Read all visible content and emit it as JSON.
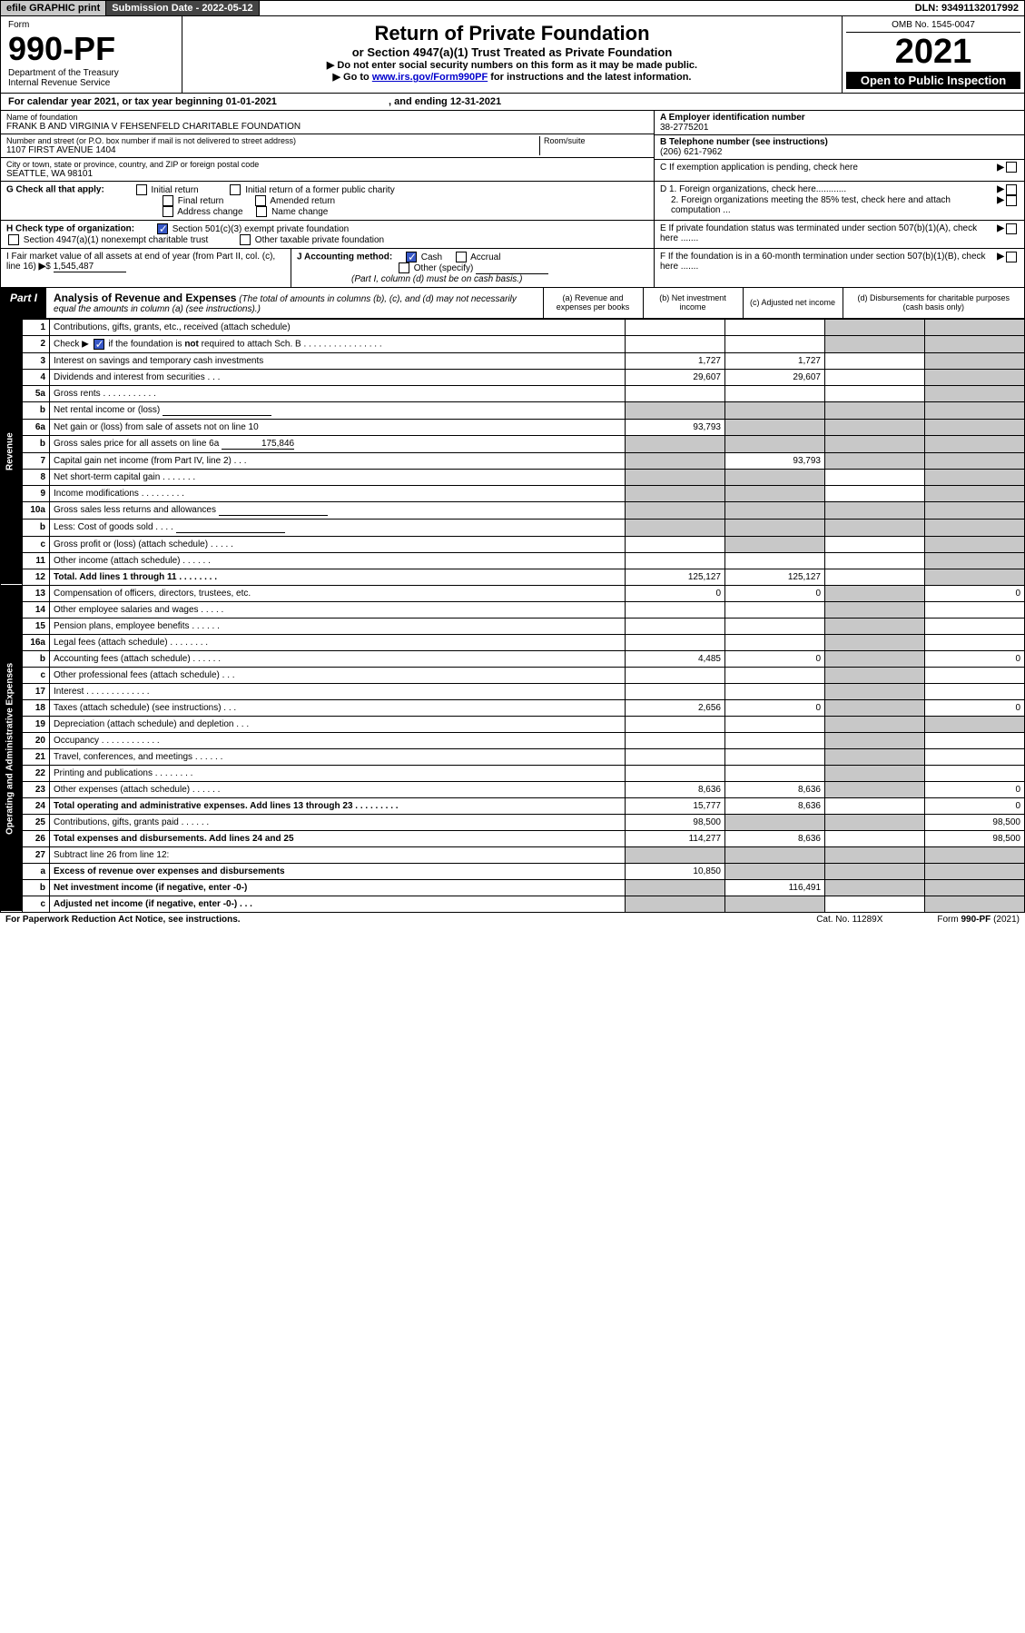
{
  "topbar": {
    "efile": "efile GRAPHIC print",
    "submission_label": "Submission Date - 2022-05-12",
    "dln": "DLN: 93491132017992"
  },
  "header": {
    "form_label": "Form",
    "form_number": "990-PF",
    "dept": "Department of the Treasury",
    "irs": "Internal Revenue Service",
    "title": "Return of Private Foundation",
    "subtitle": "or Section 4947(a)(1) Trust Treated as Private Foundation",
    "instr1": "▶ Do not enter social security numbers on this form as it may be made public.",
    "instr2_pre": "▶ Go to ",
    "instr2_link": "www.irs.gov/Form990PF",
    "instr2_post": " for instructions and the latest information.",
    "omb": "OMB No. 1545-0047",
    "year": "2021",
    "open": "Open to Public Inspection"
  },
  "calendar": {
    "text_pre": "For calendar year 2021, or tax year beginning ",
    "begin": "01-01-2021",
    "mid": " , and ending ",
    "end": "12-31-2021"
  },
  "entity": {
    "name_lbl": "Name of foundation",
    "name": "FRANK B AND VIRGINIA V FEHSENFELD CHARITABLE FOUNDATION",
    "addr_lbl": "Number and street (or P.O. box number if mail is not delivered to street address)",
    "addr": "1107 FIRST AVENUE 1404",
    "room_lbl": "Room/suite",
    "city_lbl": "City or town, state or province, country, and ZIP or foreign postal code",
    "city": "SEATTLE, WA  98101",
    "a_lbl": "A Employer identification number",
    "a_val": "38-2775201",
    "b_lbl": "B Telephone number (see instructions)",
    "b_val": "(206) 621-7962",
    "c_lbl": "C If exemption application is pending, check here"
  },
  "g": {
    "lbl": "G Check all that apply:",
    "opts": [
      "Initial return",
      "Initial return of a former public charity",
      "Final return",
      "Amended return",
      "Address change",
      "Name change"
    ]
  },
  "h": {
    "lbl": "H Check type of organization:",
    "opt1": "Section 501(c)(3) exempt private foundation",
    "opt2": "Section 4947(a)(1) nonexempt charitable trust",
    "opt3": "Other taxable private foundation"
  },
  "i": {
    "lbl": "I Fair market value of all assets at end of year (from Part II, col. (c), line 16)",
    "val": "1,545,487"
  },
  "j": {
    "lbl": "J Accounting method:",
    "cash": "Cash",
    "accrual": "Accrual",
    "other": "Other (specify)",
    "note": "(Part I, column (d) must be on cash basis.)"
  },
  "d": {
    "d1": "D 1. Foreign organizations, check here............",
    "d2": "2. Foreign organizations meeting the 85% test, check here and attach computation ...",
    "e": "E  If private foundation status was terminated under section 507(b)(1)(A), check here .......",
    "f": "F  If the foundation is in a 60-month termination under section 507(b)(1)(B), check here ......."
  },
  "part1": {
    "tag": "Part I",
    "title": "Analysis of Revenue and Expenses",
    "title_note": " (The total of amounts in columns (b), (c), and (d) may not necessarily equal the amounts in column (a) (see instructions).)",
    "cols": {
      "a": "(a)   Revenue and expenses per books",
      "b": "(b)   Net investment income",
      "c": "(c)   Adjusted net income",
      "d": "(d)   Disbursements for charitable purposes (cash basis only)"
    }
  },
  "side_labels": {
    "rev": "Revenue",
    "exp": "Operating and Administrative Expenses"
  },
  "rows": [
    {
      "n": "1",
      "d": "Contributions, gifts, grants, etc., received (attach schedule)",
      "a": "",
      "b": "",
      "c": "s",
      "ds": "s"
    },
    {
      "n": "2",
      "d": "Check ▶ ☑ if the foundation is not required to attach Sch. B   .  .  .  .  .  .  .  .  .  .  .  .  .  .  .  .",
      "a": "",
      "b": "",
      "c": "s",
      "ds": "s",
      "checked": true
    },
    {
      "n": "3",
      "d": "Interest on savings and temporary cash investments",
      "a": "1,727",
      "b": "1,727",
      "c": "",
      "ds": "s"
    },
    {
      "n": "4",
      "d": "Dividends and interest from securities   .   .   .",
      "a": "29,607",
      "b": "29,607",
      "c": "",
      "ds": "s"
    },
    {
      "n": "5a",
      "d": "Gross rents   .   .   .   .   .   .   .   .   .   .   .",
      "a": "",
      "b": "",
      "c": "",
      "ds": "s"
    },
    {
      "n": "b",
      "d": "Net rental income or (loss)  ",
      "a": "s",
      "b": "s",
      "c": "s",
      "ds": "s",
      "inline": true
    },
    {
      "n": "6a",
      "d": "Net gain or (loss) from sale of assets not on line 10",
      "a": "93,793",
      "b": "s",
      "c": "s",
      "ds": "s"
    },
    {
      "n": "b",
      "d": "Gross sales price for all assets on line 6a",
      "a": "s",
      "b": "s",
      "c": "s",
      "ds": "s",
      "inline_val": "175,846"
    },
    {
      "n": "7",
      "d": "Capital gain net income (from Part IV, line 2)   .   .   .",
      "a": "s",
      "b": "93,793",
      "c": "s",
      "ds": "s"
    },
    {
      "n": "8",
      "d": "Net short-term capital gain   .   .   .   .   .   .   .",
      "a": "s",
      "b": "s",
      "c": "",
      "ds": "s"
    },
    {
      "n": "9",
      "d": "Income modifications  .   .   .   .   .   .   .   .   .",
      "a": "s",
      "b": "s",
      "c": "",
      "ds": "s"
    },
    {
      "n": "10a",
      "d": "Gross sales less returns and allowances",
      "a": "s",
      "b": "s",
      "c": "s",
      "ds": "s",
      "inline": true
    },
    {
      "n": "b",
      "d": "Less: Cost of goods sold   .   .   .   .",
      "a": "s",
      "b": "s",
      "c": "s",
      "ds": "s",
      "inline": true
    },
    {
      "n": "c",
      "d": "Gross profit or (loss) (attach schedule)   .   .   .   .   .",
      "a": "",
      "b": "s",
      "c": "",
      "ds": "s"
    },
    {
      "n": "11",
      "d": "Other income (attach schedule)   .   .   .   .   .   .",
      "a": "",
      "b": "",
      "c": "",
      "ds": "s"
    },
    {
      "n": "12",
      "d": "Total. Add lines 1 through 11   .   .   .   .   .   .   .   .",
      "a": "125,127",
      "b": "125,127",
      "c": "",
      "ds": "s",
      "bold": true
    }
  ],
  "exp_rows": [
    {
      "n": "13",
      "d": "Compensation of officers, directors, trustees, etc.",
      "a": "0",
      "b": "0",
      "c": "s",
      "dv": "0"
    },
    {
      "n": "14",
      "d": "Other employee salaries and wages   .   .   .   .   .",
      "a": "",
      "b": "",
      "c": "s",
      "dv": ""
    },
    {
      "n": "15",
      "d": "Pension plans, employee benefits  .   .   .   .   .   .",
      "a": "",
      "b": "",
      "c": "s",
      "dv": ""
    },
    {
      "n": "16a",
      "d": "Legal fees (attach schedule)  .   .   .   .   .   .   .   .",
      "a": "",
      "b": "",
      "c": "s",
      "dv": ""
    },
    {
      "n": "b",
      "d": "Accounting fees (attach schedule)  .   .   .   .   .   .",
      "a": "4,485",
      "b": "0",
      "c": "s",
      "dv": "0"
    },
    {
      "n": "c",
      "d": "Other professional fees (attach schedule)   .   .   .",
      "a": "",
      "b": "",
      "c": "s",
      "dv": ""
    },
    {
      "n": "17",
      "d": "Interest  .   .   .   .   .   .   .   .   .   .   .   .   .",
      "a": "",
      "b": "",
      "c": "s",
      "dv": ""
    },
    {
      "n": "18",
      "d": "Taxes (attach schedule) (see instructions)   .   .   .",
      "a": "2,656",
      "b": "0",
      "c": "s",
      "dv": "0"
    },
    {
      "n": "19",
      "d": "Depreciation (attach schedule) and depletion   .   .   .",
      "a": "",
      "b": "",
      "c": "s",
      "dv": "s"
    },
    {
      "n": "20",
      "d": "Occupancy  .   .   .   .   .   .   .   .   .   .   .   .",
      "a": "",
      "b": "",
      "c": "s",
      "dv": ""
    },
    {
      "n": "21",
      "d": "Travel, conferences, and meetings  .   .   .   .   .   .",
      "a": "",
      "b": "",
      "c": "s",
      "dv": ""
    },
    {
      "n": "22",
      "d": "Printing and publications  .   .   .   .   .   .   .   .",
      "a": "",
      "b": "",
      "c": "s",
      "dv": ""
    },
    {
      "n": "23",
      "d": "Other expenses (attach schedule)  .   .   .   .   .   .",
      "a": "8,636",
      "b": "8,636",
      "c": "s",
      "dv": "0"
    },
    {
      "n": "24",
      "d": "Total operating and administrative expenses. Add lines 13 through 23   .   .   .   .   .   .   .   .   .",
      "a": "15,777",
      "b": "8,636",
      "c": "",
      "dv": "0",
      "bold": true
    },
    {
      "n": "25",
      "d": "Contributions, gifts, grants paid   .   .   .   .   .   .",
      "a": "98,500",
      "b": "s",
      "c": "s",
      "dv": "98,500"
    },
    {
      "n": "26",
      "d": "Total expenses and disbursements. Add lines 24 and 25",
      "a": "114,277",
      "b": "8,636",
      "c": "",
      "dv": "98,500",
      "bold": true
    },
    {
      "n": "27",
      "d": "Subtract line 26 from line 12:",
      "a": "s",
      "b": "s",
      "c": "s",
      "dv": "s"
    },
    {
      "n": "a",
      "d": "Excess of revenue over expenses and disbursements",
      "a": "10,850",
      "b": "s",
      "c": "s",
      "dv": "s",
      "bold": true
    },
    {
      "n": "b",
      "d": "Net investment income (if negative, enter -0-)",
      "a": "s",
      "b": "116,491",
      "c": "s",
      "dv": "s",
      "bold": true
    },
    {
      "n": "c",
      "d": "Adjusted net income (if negative, enter -0-)   .   .   .",
      "a": "s",
      "b": "s",
      "c": "",
      "dv": "s",
      "bold": true
    }
  ],
  "footer": {
    "left": "For Paperwork Reduction Act Notice, see instructions.",
    "mid": "Cat. No. 11289X",
    "right": "Form 990-PF (2021)"
  },
  "colors": {
    "shade": "#c8c8c8",
    "black": "#000000",
    "link": "#0000cc",
    "check": "#3858c6"
  }
}
